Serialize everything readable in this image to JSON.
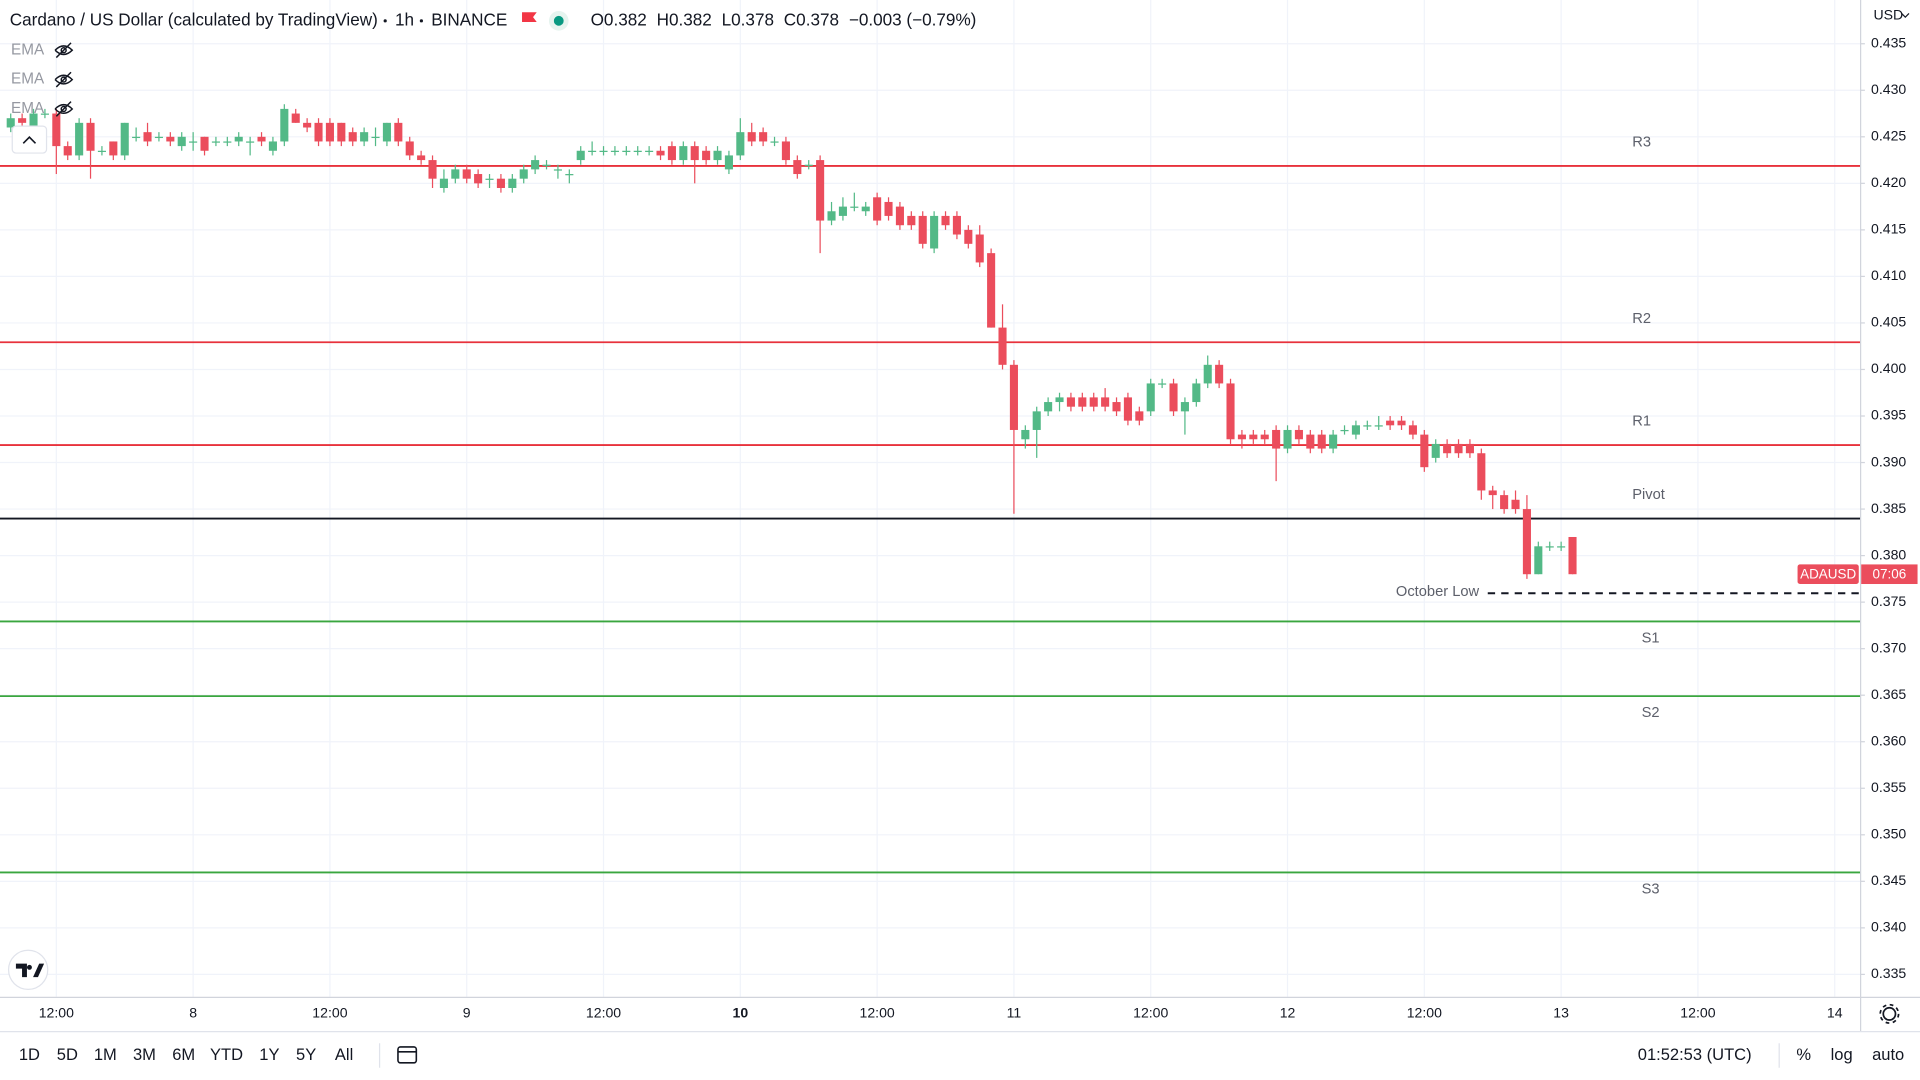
{
  "chart_data": {
    "type": "candlestick",
    "title": "Cardano / US Dollar (calculated by TradingView)",
    "interval": "1h",
    "exchange": "BINANCE",
    "legend": [
      {
        "label": "O",
        "value": 0.382
      },
      {
        "label": "H",
        "value": 0.382
      },
      {
        "label": "L",
        "value": 0.378
      },
      {
        "label": "C",
        "value": 0.378
      }
    ],
    "change": "−0.003 (−0.79%)",
    "indicators": [
      "EMA",
      "EMA",
      "EMA"
    ],
    "currency": "USD",
    "symbol": "ADAUSD",
    "countdown": "07:06",
    "up_color": "#53b987",
    "down_color": "#eb4d5c",
    "categories": [
      null,
      null,
      null,
      null,
      "12:00",
      null,
      null,
      null,
      null,
      null,
      null,
      null,
      null,
      null,
      null,
      null,
      "8",
      null,
      null,
      null,
      null,
      null,
      null,
      null,
      null,
      null,
      null,
      null,
      "12:00",
      null,
      null,
      null,
      null,
      null,
      null,
      null,
      null,
      null,
      null,
      null,
      "9",
      null,
      null,
      null,
      null,
      null,
      null,
      null,
      null,
      null,
      null,
      null,
      "12:00",
      null,
      null,
      null,
      null,
      null,
      null,
      null,
      null,
      null,
      null,
      null,
      "10",
      null,
      null,
      null,
      null,
      null,
      null,
      null,
      null,
      null,
      null,
      null,
      "12:00",
      null,
      null,
      null,
      null,
      null,
      null,
      null,
      null,
      null,
      null,
      null,
      "11",
      null,
      null,
      null,
      null,
      null,
      null,
      null,
      null,
      null,
      null,
      null,
      "12:00",
      null,
      null,
      null,
      null,
      null,
      null,
      null,
      null,
      null,
      null,
      null,
      "12",
      null,
      null,
      null,
      null,
      null,
      null,
      null,
      null,
      null,
      null,
      null,
      "12:00",
      null,
      null,
      null,
      null,
      null,
      null,
      null,
      null,
      null,
      null,
      null,
      "13",
      null,
      null,
      null,
      null,
      null,
      null,
      null,
      null,
      null,
      null,
      null,
      "12:00",
      null,
      null,
      null,
      null,
      null,
      null,
      null,
      null,
      null,
      null,
      null,
      "14",
      null
    ],
    "open": [
      0.426,
      0.427,
      0.426,
      0.4275,
      0.4275,
      0.424,
      0.423,
      0.4265,
      0.4235,
      0.4245,
      0.423,
      0.425,
      0.4255,
      0.425,
      0.425,
      0.424,
      0.4245,
      0.425,
      0.4245,
      0.4245,
      0.4245,
      0.4245,
      0.425,
      0.4235,
      0.4245,
      0.4275,
      0.4265,
      0.4265,
      0.4265,
      0.4265,
      0.4255,
      0.4245,
      0.425,
      0.4245,
      0.4265,
      0.4245,
      0.423,
      0.4225,
      0.4195,
      0.4205,
      0.4215,
      0.421,
      0.4205,
      0.4205,
      0.4195,
      0.4205,
      0.4215,
      0.422,
      0.4215,
      0.421,
      0.4225,
      0.4235,
      0.4235,
      0.4235,
      0.4235,
      0.4235,
      0.4235,
      0.4235,
      0.424,
      0.4225,
      0.424,
      0.4235,
      0.4225,
      0.4215,
      0.423,
      0.4255,
      0.4255,
      0.4245,
      0.4245,
      0.4225,
      0.422,
      0.4225,
      0.416,
      0.4165,
      0.4175,
      0.417,
      0.4185,
      0.418,
      0.4175,
      0.4165,
      0.4165,
      0.413,
      0.4165,
      0.4165,
      0.415,
      0.4145,
      0.4125,
      0.4045,
      0.4005,
      0.3925,
      0.3935,
      0.3955,
      0.3965,
      0.397,
      0.397,
      0.397,
      0.397,
      0.3965,
      0.397,
      0.3955,
      0.3955,
      0.3985,
      0.3985,
      0.3955,
      0.3965,
      0.3985,
      0.4005,
      0.3985,
      0.393,
      0.393,
      0.393,
      0.3935,
      0.3915,
      0.3935,
      0.393,
      0.393,
      0.3915,
      0.3935,
      0.393,
      0.394,
      0.394,
      0.3945,
      0.3945,
      0.394,
      0.393,
      0.3905,
      0.392,
      0.392,
      0.392,
      0.391,
      0.387,
      0.3865,
      0.386,
      0.385,
      0.378,
      0.381,
      0.381,
      0.382,
      null,
      null,
      null,
      null,
      null,
      null,
      null,
      null,
      null,
      null,
      null,
      null,
      null,
      null,
      null,
      null,
      null,
      null,
      null,
      null,
      null,
      null,
      null,
      null
    ],
    "high": [
      0.4275,
      0.4275,
      0.428,
      0.428,
      0.428,
      0.4245,
      0.427,
      0.427,
      0.424,
      0.4245,
      0.4265,
      0.426,
      0.4265,
      0.4255,
      0.4255,
      0.4255,
      0.4255,
      0.425,
      0.425,
      0.425,
      0.4255,
      0.425,
      0.4255,
      0.425,
      0.4285,
      0.428,
      0.427,
      0.427,
      0.427,
      0.4265,
      0.426,
      0.426,
      0.426,
      0.4265,
      0.427,
      0.425,
      0.4235,
      0.423,
      0.4215,
      0.422,
      0.422,
      0.4215,
      0.421,
      0.421,
      0.421,
      0.422,
      0.423,
      0.4225,
      0.422,
      0.4215,
      0.424,
      0.4245,
      0.424,
      0.424,
      0.424,
      0.424,
      0.424,
      0.424,
      0.4245,
      0.4245,
      0.4245,
      0.424,
      0.424,
      0.4235,
      0.427,
      0.4265,
      0.426,
      0.425,
      0.425,
      0.423,
      0.4225,
      0.423,
      0.418,
      0.4185,
      0.419,
      0.418,
      0.419,
      0.4185,
      0.418,
      0.417,
      0.417,
      0.417,
      0.417,
      0.417,
      0.4155,
      0.4155,
      0.413,
      0.407,
      0.401,
      0.394,
      0.396,
      0.397,
      0.3975,
      0.3975,
      0.3975,
      0.3975,
      0.398,
      0.397,
      0.3975,
      0.396,
      0.399,
      0.399,
      0.399,
      0.397,
      0.399,
      0.4015,
      0.401,
      0.399,
      0.3935,
      0.3935,
      0.3935,
      0.394,
      0.394,
      0.394,
      0.3935,
      0.3935,
      0.3935,
      0.394,
      0.3945,
      0.3945,
      0.395,
      0.395,
      0.395,
      0.3945,
      0.3935,
      0.3925,
      0.3925,
      0.3925,
      0.3925,
      0.3915,
      0.3875,
      0.387,
      0.387,
      0.3865,
      0.3815,
      0.3815,
      0.3815,
      0.382,
      null,
      null,
      null,
      null,
      null,
      null,
      null,
      null,
      null,
      null,
      null,
      null,
      null,
      null,
      null,
      null,
      null,
      null,
      null,
      null,
      null,
      null,
      null,
      null
    ],
    "low": [
      0.4255,
      0.426,
      0.4255,
      0.427,
      0.421,
      0.4225,
      0.4225,
      0.4205,
      0.423,
      0.4225,
      0.4225,
      0.4245,
      0.424,
      0.4245,
      0.424,
      0.4235,
      0.4235,
      0.423,
      0.424,
      0.424,
      0.424,
      0.423,
      0.424,
      0.423,
      0.424,
      0.4265,
      0.4255,
      0.424,
      0.424,
      0.424,
      0.424,
      0.424,
      0.424,
      0.424,
      0.424,
      0.4225,
      0.422,
      0.4195,
      0.419,
      0.42,
      0.42,
      0.4195,
      0.4195,
      0.419,
      0.419,
      0.42,
      0.421,
      0.4215,
      0.4205,
      0.42,
      0.422,
      0.423,
      0.423,
      0.423,
      0.423,
      0.423,
      0.423,
      0.4225,
      0.422,
      0.422,
      0.42,
      0.422,
      0.422,
      0.421,
      0.4225,
      0.424,
      0.424,
      0.424,
      0.422,
      0.4205,
      0.4215,
      0.4125,
      0.4155,
      0.416,
      0.417,
      0.4165,
      0.4155,
      0.416,
      0.415,
      0.415,
      0.413,
      0.4125,
      0.415,
      0.414,
      0.413,
      0.411,
      0.4045,
      0.4,
      0.3845,
      0.3915,
      0.3905,
      0.395,
      0.3955,
      0.3955,
      0.3955,
      0.3955,
      0.3955,
      0.395,
      0.394,
      0.394,
      0.395,
      0.398,
      0.395,
      0.393,
      0.396,
      0.398,
      0.398,
      0.392,
      0.3915,
      0.392,
      0.392,
      0.388,
      0.391,
      0.392,
      0.391,
      0.391,
      0.391,
      0.393,
      0.3925,
      0.3935,
      0.3935,
      0.3935,
      0.3935,
      0.3925,
      0.389,
      0.39,
      0.3905,
      0.3905,
      0.3905,
      0.386,
      0.385,
      0.3845,
      0.3845,
      0.3775,
      0.378,
      0.3805,
      0.3805,
      0.378,
      null,
      null,
      null,
      null,
      null,
      null,
      null,
      null,
      null,
      null,
      null,
      null,
      null,
      null,
      null,
      null,
      null,
      null,
      null,
      null,
      null,
      null,
      null,
      null
    ],
    "close": [
      0.427,
      0.4265,
      0.4275,
      0.4275,
      0.424,
      0.423,
      0.4265,
      0.4235,
      0.4235,
      0.423,
      0.4265,
      0.425,
      0.4245,
      0.425,
      0.4245,
      0.425,
      0.4245,
      0.4235,
      0.4245,
      0.4245,
      0.425,
      0.4245,
      0.4245,
      0.4245,
      0.428,
      0.4265,
      0.426,
      0.4245,
      0.4245,
      0.4245,
      0.4245,
      0.4255,
      0.425,
      0.4265,
      0.4245,
      0.423,
      0.4225,
      0.4205,
      0.4205,
      0.4215,
      0.4205,
      0.42,
      0.4205,
      0.4195,
      0.4205,
      0.4215,
      0.4225,
      0.422,
      0.4215,
      0.421,
      0.4235,
      0.4235,
      0.4235,
      0.4235,
      0.4235,
      0.4235,
      0.4235,
      0.423,
      0.4225,
      0.424,
      0.4225,
      0.4225,
      0.4235,
      0.423,
      0.4255,
      0.4245,
      0.4245,
      0.4245,
      0.4225,
      0.421,
      0.422,
      0.416,
      0.417,
      0.4175,
      0.4175,
      0.4175,
      0.416,
      0.4165,
      0.4155,
      0.4155,
      0.4135,
      0.4165,
      0.4155,
      0.4145,
      0.4135,
      0.4115,
      0.4045,
      0.4005,
      0.3935,
      0.3935,
      0.3955,
      0.3965,
      0.397,
      0.396,
      0.396,
      0.396,
      0.396,
      0.3955,
      0.3945,
      0.3945,
      0.3985,
      0.3985,
      0.3955,
      0.3965,
      0.3985,
      0.4005,
      0.3985,
      0.3925,
      0.3925,
      0.3925,
      0.3925,
      0.3915,
      0.3935,
      0.3925,
      0.3915,
      0.3915,
      0.393,
      0.3935,
      0.394,
      0.394,
      0.394,
      0.394,
      0.394,
      0.393,
      0.3895,
      0.392,
      0.391,
      0.391,
      0.391,
      0.387,
      0.3865,
      0.385,
      0.385,
      0.378,
      0.381,
      0.381,
      0.381,
      0.378,
      null,
      null,
      null,
      null,
      null,
      null,
      null,
      null,
      null,
      null,
      null,
      null,
      null,
      null,
      null,
      null,
      null,
      null,
      null,
      null,
      null,
      null,
      null,
      null
    ],
    "levels": [
      {
        "name": "R3",
        "value": 0.422,
        "color": "#e8323c",
        "style": "solid"
      },
      {
        "name": "R2",
        "value": 0.403,
        "color": "#e8323c",
        "style": "solid"
      },
      {
        "name": "R1",
        "value": 0.392,
        "color": "#e8323c",
        "style": "solid"
      },
      {
        "name": "Pivot",
        "value": 0.384,
        "color": "#131722",
        "style": "solid"
      },
      {
        "name": "October Low",
        "value": 0.376,
        "color": "#131722",
        "style": "dashed"
      },
      {
        "name": "S1",
        "value": 0.373,
        "color": "#3aa63f",
        "style": "solid"
      },
      {
        "name": "S2",
        "value": 0.365,
        "color": "#3aa63f",
        "style": "solid"
      },
      {
        "name": "S3",
        "value": 0.346,
        "color": "#3aa63f",
        "style": "solid"
      }
    ],
    "ylim": [
      0.3326,
      0.4397
    ],
    "yticks": [
      0.335,
      {
        "value": 0.34,
        "label": "0.340"
      },
      0.345,
      {
        "value": 0.35,
        "label": "0.350"
      },
      0.355,
      {
        "value": 0.36,
        "label": "0.360"
      },
      0.365,
      {
        "value": 0.37,
        "label": "0.370"
      },
      0.375,
      {
        "value": 0.38,
        "label": "0.380"
      },
      0.385,
      {
        "value": 0.39,
        "label": "0.390"
      },
      0.395,
      {
        "value": 0.4,
        "label": "0.400"
      },
      0.405,
      {
        "value": 0.41,
        "label": "0.410"
      },
      0.415,
      {
        "value": 0.42,
        "label": "0.420"
      },
      0.425,
      {
        "value": 0.43,
        "label": "0.430"
      },
      0.435
    ],
    "grid": true,
    "timeframes": [
      "1D",
      "5D",
      "1M",
      "3M",
      "6M",
      "YTD",
      "1Y",
      "5Y",
      "All"
    ],
    "clock": "01:52:53 (UTC)",
    "scale_options": [
      "%",
      "log",
      "auto"
    ]
  }
}
